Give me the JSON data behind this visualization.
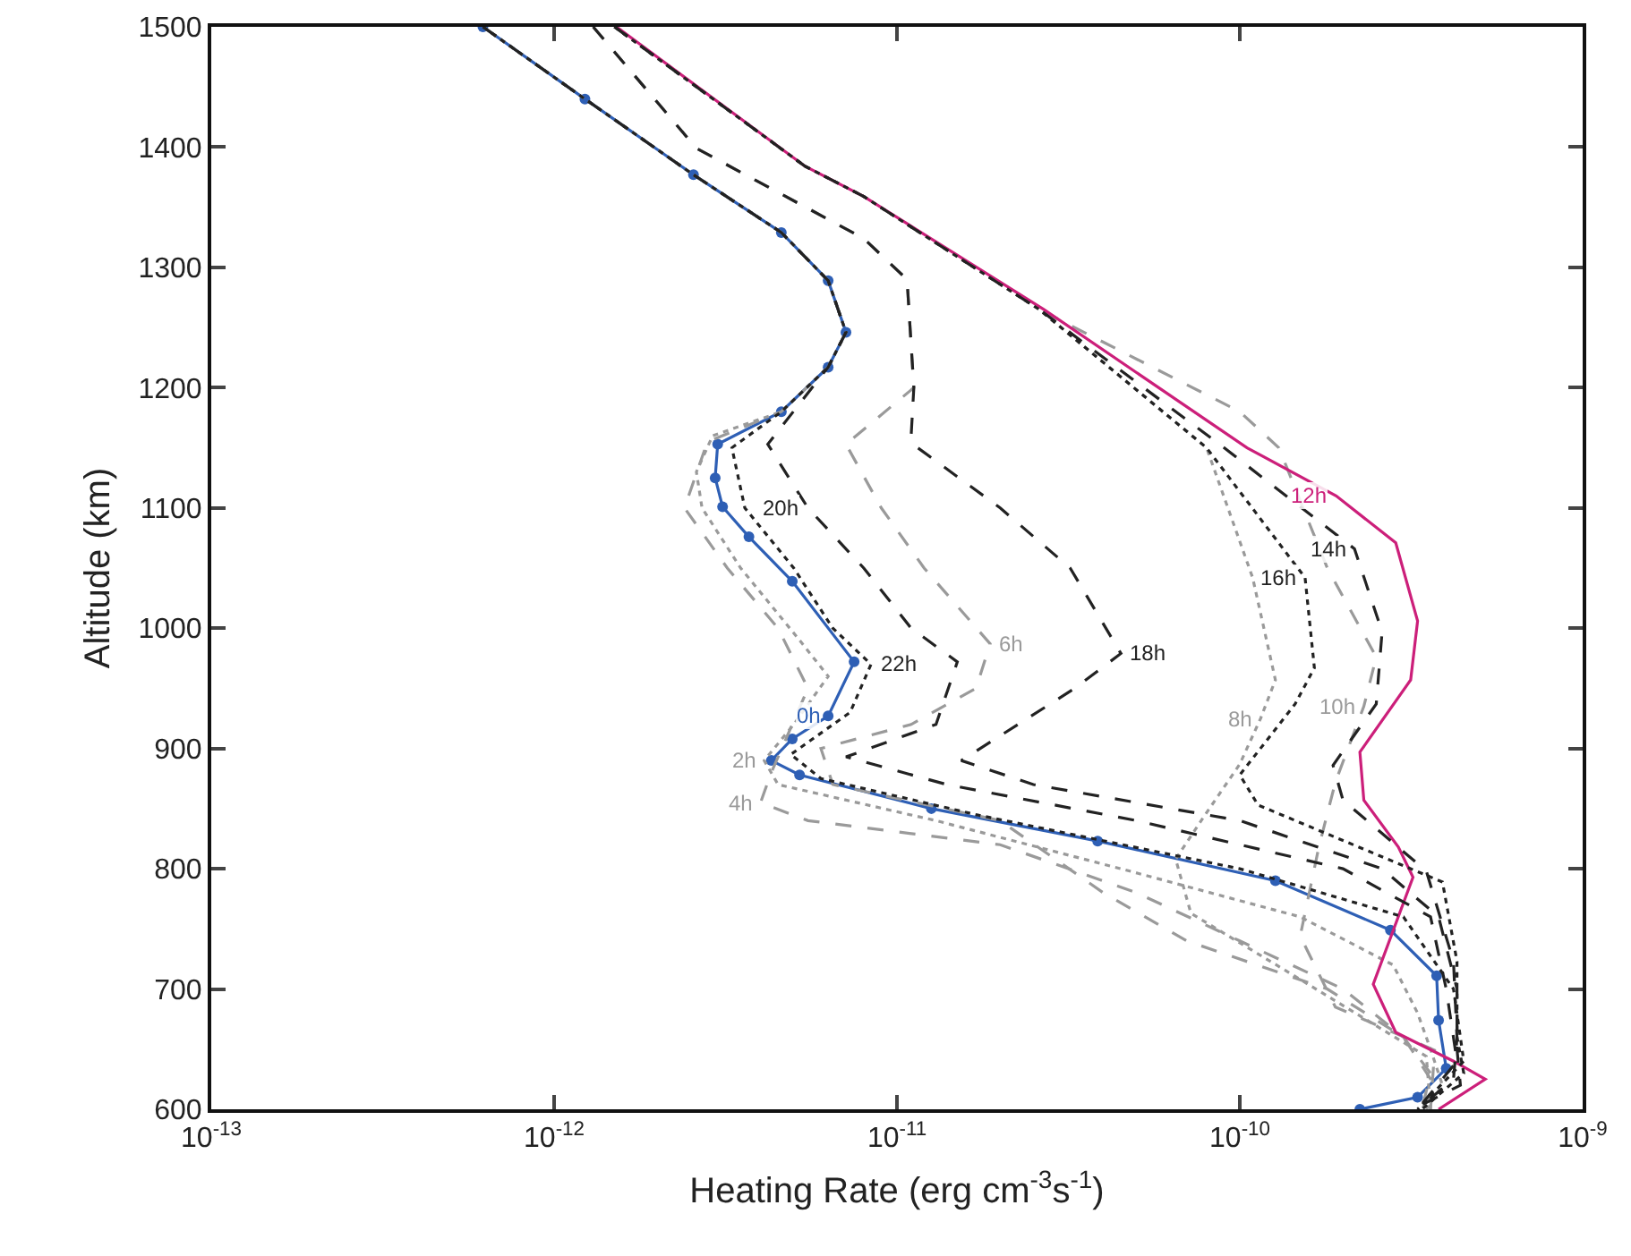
{
  "chart_data": {
    "type": "line",
    "xlabel": "Heating Rate (erg cm$^{-3}$s$^{-1}$)",
    "ylabel": "Altitude (km)",
    "log": "x",
    "grid": false,
    "xlim": [
      1e-13,
      1e-09
    ],
    "xticks": [
      {
        "value": 1e-13,
        "label": "10$^{-13}$"
      },
      {
        "value": 1e-12,
        "label": "10$^{-12}$"
      },
      {
        "value": 1e-11,
        "label": "10$^{-11}$"
      },
      {
        "value": 1e-10,
        "label": "10$^{-10}$"
      },
      {
        "value": 1e-09,
        "label": "10$^{-9}$"
      }
    ],
    "ylim": [
      600,
      1500
    ],
    "yticks": [
      600,
      700,
      800,
      900,
      1000,
      1100,
      1200,
      1300,
      1400,
      1500
    ],
    "series": [
      {
        "color": "#2e5fb5",
        "line_style": "solid",
        "marker": "circle",
        "x": [
          6.2e-13,
          1.23e-12,
          2.55e-12,
          4.6e-12,
          6.3e-12,
          7.1e-12,
          6.3e-12,
          4.6e-12,
          3e-12,
          2.95e-12,
          3.1e-12,
          3.7e-12,
          4.95e-12,
          7.5e-12,
          6.3e-12,
          4.95e-12,
          4.3e-12,
          5.2e-12,
          1.26e-11,
          3.85e-11,
          1.27e-10,
          2.75e-10,
          3.75e-10,
          3.8e-10,
          4e-10,
          3.3e-10,
          2.24e-10
        ],
        "values": [
          1500,
          1440,
          1377,
          1329,
          1289,
          1246,
          1217,
          1180,
          1153,
          1125,
          1101,
          1076,
          1039,
          972,
          927,
          908,
          890,
          878,
          850,
          823,
          790,
          749,
          711,
          674,
          634,
          610,
          600
        ]
      },
      {
        "color": "#9a9a9a",
        "line_style": "dotted",
        "x": [
          6.2e-13,
          1.23e-12,
          2.55e-12,
          4.6e-12,
          6.3e-12,
          7.1e-12,
          6.3e-12,
          4.6e-12,
          2.9e-12,
          2.6e-12,
          2.7e-12,
          3.5e-12,
          5.2e-12,
          6.3e-12,
          5e-12,
          4.1e-12,
          4.5e-12,
          1.3e-11,
          4.5e-11,
          1.5e-10,
          2.8e-10,
          3.3e-10,
          3.6e-10,
          3.9e-10,
          3.5e-10
        ],
        "values": [
          1500,
          1440,
          1377,
          1329,
          1289,
          1246,
          1217,
          1180,
          1160,
          1130,
          1100,
          1050,
          990,
          960,
          920,
          890,
          870,
          840,
          800,
          760,
          720,
          680,
          650,
          620,
          600
        ]
      },
      {
        "color": "#9a9a9a",
        "line_style": "dashed",
        "x": [
          6.2e-13,
          1.23e-12,
          2.55e-12,
          4.6e-12,
          6.3e-12,
          7.1e-12,
          6.3e-12,
          4.6e-12,
          2.8e-12,
          2.4e-12,
          3.2e-12,
          4.5e-12,
          5.5e-12,
          4.3e-12,
          4e-12,
          5.5e-12,
          2e-11,
          5e-11,
          1e-10,
          2e-10,
          3e-10,
          3.6e-10,
          3.4e-10
        ],
        "values": [
          1500,
          1440,
          1377,
          1329,
          1289,
          1246,
          1217,
          1180,
          1155,
          1100,
          1050,
          1000,
          950,
          880,
          855,
          840,
          820,
          780,
          740,
          700,
          660,
          630,
          600
        ]
      },
      {
        "color": "#9a9a9a",
        "line_style": "dashed",
        "x": [
          1.3e-12,
          2.6e-12,
          8e-12,
          1.07e-11,
          1.12e-11,
          7.1e-12,
          9e-12,
          1.2e-11,
          1.87e-11,
          1.7e-11,
          1.1e-11,
          6e-12,
          6.5e-12,
          2e-11,
          4e-11,
          7e-11,
          1.8e-10,
          3e-10,
          3.7e-10,
          3.4e-10
        ],
        "values": [
          1500,
          1399,
          1324,
          1290,
          1200,
          1153,
          1100,
          1050,
          987,
          950,
          920,
          900,
          870,
          840,
          780,
          740,
          700,
          660,
          620,
          600
        ]
      },
      {
        "color": "#9a9a9a",
        "line_style": "dotted",
        "x": [
          1.5e-12,
          5.4e-12,
          8e-12,
          2.6e-11,
          8e-11,
          1.09e-10,
          1.27e-10,
          1.15e-10,
          1e-10,
          7.8e-11,
          6.5e-11,
          7.2e-11,
          1.5e-10,
          3.5e-10,
          3.6e-10
        ],
        "values": [
          1500,
          1384,
          1359,
          1265,
          1150,
          1042,
          957,
          925,
          887,
          842,
          808,
          763,
          708,
          644,
          600
        ]
      },
      {
        "color": "#9a9a9a",
        "line_style": "dashed",
        "x": [
          1.5e-12,
          5.4e-12,
          8e-12,
          2.6e-11,
          1e-10,
          1.3e-10,
          1.8e-10,
          2.5e-10,
          2.3e-10,
          1.9e-10,
          1.7e-10,
          1.5e-10,
          1.9e-10,
          3.7e-10,
          3.6e-10
        ],
        "values": [
          1500,
          1384,
          1359,
          1265,
          1180,
          1150,
          1050,
          976,
          935,
          872,
          818,
          744,
          685,
          649,
          600
        ]
      },
      {
        "color": "#cc1f7a",
        "line_style": "solid",
        "x": [
          1.52e-12,
          5.4e-12,
          8e-12,
          2.68e-11,
          1.05e-10,
          1.91e-10,
          2.85e-10,
          3.3e-10,
          3.15e-10,
          2.24e-10,
          2.3e-10,
          2.9e-10,
          3.2e-10,
          2.45e-10,
          2.85e-10,
          4.2e-10,
          5.2e-10,
          3.8e-10
        ],
        "values": [
          1500,
          1384,
          1359,
          1265,
          1150,
          1110,
          1071,
          1006,
          957,
          897,
          857,
          818,
          793,
          704,
          664,
          640,
          625,
          600
        ]
      },
      {
        "color": "#222222",
        "line_style": "dashed",
        "x": [
          1.5e-12,
          5.4e-12,
          8e-12,
          2.6e-11,
          9e-11,
          2.16e-10,
          2.6e-10,
          2.5e-10,
          1.87e-10,
          2e-10,
          3.5e-10,
          4.2e-10,
          4.3e-10,
          4.2e-10,
          3.3e-10
        ],
        "values": [
          1500,
          1384,
          1359,
          1265,
          1150,
          1066,
          997,
          937,
          886,
          857,
          798,
          723,
          659,
          625,
          600
        ]
      },
      {
        "color": "#222222",
        "line_style": "dotted",
        "x": [
          1.5e-12,
          5.4e-12,
          8e-12,
          2.6e-11,
          8e-11,
          1.55e-10,
          1.65e-10,
          1.45e-10,
          1e-10,
          1.13e-10,
          3.9e-10,
          4.3e-10,
          4.3e-10,
          4.5e-10,
          3.4e-10
        ],
        "values": [
          1500,
          1384,
          1359,
          1265,
          1150,
          1042,
          967,
          937,
          878,
          853,
          789,
          723,
          660,
          630,
          600
        ]
      },
      {
        "color": "#222222",
        "line_style": "dashed",
        "x": [
          1.3e-12,
          2.6e-12,
          8e-12,
          1.07e-11,
          1.12e-11,
          1.1e-11,
          1.15e-11,
          2e-11,
          3.2e-11,
          4.5e-11,
          3.3e-11,
          1.54e-11,
          2.5e-11,
          1e-10,
          2.6e-10,
          3.8e-10,
          4.3e-10,
          4.3e-10,
          4.4e-10,
          3.2e-10
        ],
        "values": [
          1500,
          1399,
          1324,
          1290,
          1200,
          1160,
          1150,
          1100,
          1050,
          979,
          950,
          890,
          870,
          840,
          800,
          760,
          700,
          650,
          620,
          600
        ]
      },
      {
        "color": "#222222",
        "line_style": "dashed",
        "x": [
          6.2e-13,
          1.23e-12,
          2.55e-12,
          4.6e-12,
          6.3e-12,
          7.1e-12,
          6.3e-12,
          4.2e-12,
          5.5e-12,
          8e-12,
          1.1e-11,
          1.5e-11,
          1.3e-11,
          7.1e-12,
          1.4e-11,
          5e-11,
          2e-10,
          3.6e-10,
          4e-10,
          4.3e-10,
          3.3e-10
        ],
        "values": [
          1500,
          1440,
          1377,
          1329,
          1289,
          1246,
          1217,
          1153,
          1100,
          1050,
          1000,
          972,
          920,
          893,
          870,
          840,
          800,
          760,
          700,
          640,
          600
        ]
      },
      {
        "color": "#222222",
        "line_style": "dotted",
        "x": [
          6.2e-13,
          1.23e-12,
          2.55e-12,
          4.6e-12,
          6.3e-12,
          7.1e-12,
          6.3e-12,
          4.6e-12,
          3.3e-12,
          3.6e-12,
          5e-12,
          6.5e-12,
          8.4e-12,
          7.3e-12,
          4.9e-12,
          6e-12,
          1.7e-11,
          1e-10,
          3e-10,
          4.2e-10,
          4.5e-10,
          3.3e-10
        ],
        "values": [
          1500,
          1440,
          1377,
          1329,
          1289,
          1246,
          1217,
          1180,
          1150,
          1100,
          1050,
          1000,
          970,
          930,
          895,
          875,
          845,
          800,
          760,
          700,
          640,
          600
        ]
      }
    ],
    "annotations": [
      {
        "text": "0h",
        "x": 6.3e-12,
        "y": 927
      },
      {
        "text": "2h",
        "x": 4.1e-12,
        "y": 890
      },
      {
        "text": "4h",
        "x": 4e-12,
        "y": 855
      },
      {
        "text": "6h",
        "x": 1.87e-11,
        "y": 987
      },
      {
        "text": "8h",
        "x": 1.15e-10,
        "y": 925
      },
      {
        "text": "10h",
        "x": 2.3e-10,
        "y": 935
      },
      {
        "text": "12h",
        "x": 1.91e-10,
        "y": 1110
      },
      {
        "text": "14h",
        "x": 2.16e-10,
        "y": 1066
      },
      {
        "text": "16h",
        "x": 1.55e-10,
        "y": 1042
      },
      {
        "text": "18h",
        "x": 4.5e-11,
        "y": 979
      },
      {
        "text": "20h",
        "x": 5.5e-12,
        "y": 1100
      },
      {
        "text": "22h",
        "x": 8.4e-12,
        "y": 970
      }
    ]
  }
}
